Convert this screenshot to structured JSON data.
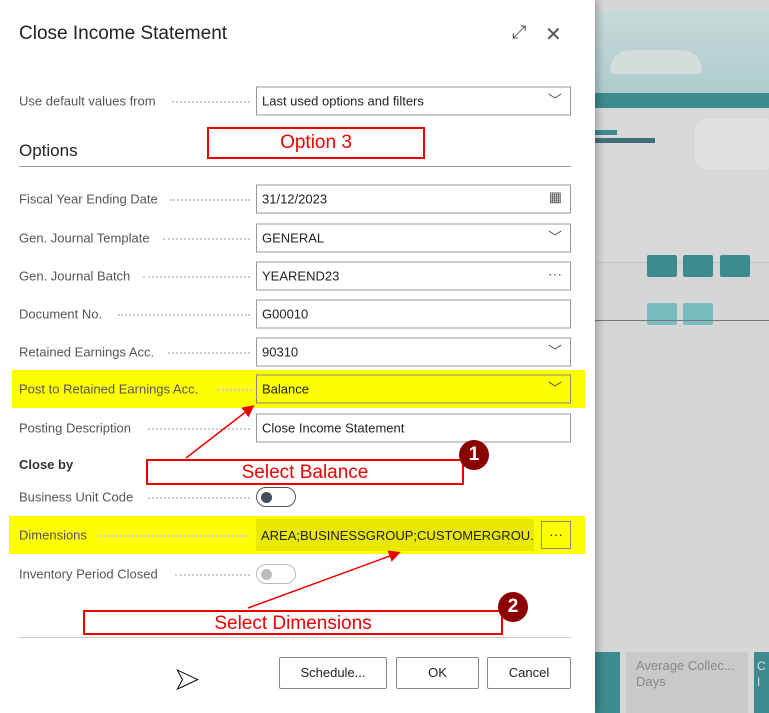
{
  "dialog": {
    "title": "Close Income Statement",
    "expand_icon": "expand-icon",
    "close_icon": "close-icon"
  },
  "default_values": {
    "label": "Use default values from",
    "value": "Last used options and filters"
  },
  "options_heading": "Options",
  "fields": {
    "fiscal_year": {
      "label": "Fiscal Year Ending Date",
      "value": "31/12/2023"
    },
    "template": {
      "label": "Gen. Journal Template",
      "value": "GENERAL"
    },
    "batch": {
      "label": "Gen. Journal Batch",
      "value": "YEAREND23"
    },
    "doc_no": {
      "label": "Document No.",
      "value": "G00010"
    },
    "retained": {
      "label": "Retained Earnings Acc.",
      "value": "90310"
    },
    "post_to": {
      "label": "Post to Retained Earnings Acc.",
      "value": "Balance"
    },
    "posting_desc": {
      "label": "Posting Description",
      "value": "Close Income Statement"
    }
  },
  "close_by": {
    "heading": "Close by",
    "business_unit": {
      "label": "Business Unit Code",
      "on": false
    },
    "dimensions": {
      "label": "Dimensions",
      "value": "AREA;BUSINESSGROUP;CUSTOMERGROU..."
    },
    "inventory": {
      "label": "Inventory Period Closed",
      "on": false,
      "disabled": true
    }
  },
  "buttons": {
    "schedule": "Schedule...",
    "ok": "OK",
    "cancel": "Cancel"
  },
  "annotations": {
    "option": "Option 3",
    "balance": "Select Balance",
    "balance_num": "1",
    "dimensions": "Select Dimensions",
    "dimensions_num": "2"
  },
  "background": {
    "card1": "Average Collec... Days",
    "card2": "C I"
  },
  "colors": {
    "highlight": "#ffff00",
    "annotation": "#e00000",
    "badge": "#8b0000",
    "teal": "#3d8a8f"
  }
}
